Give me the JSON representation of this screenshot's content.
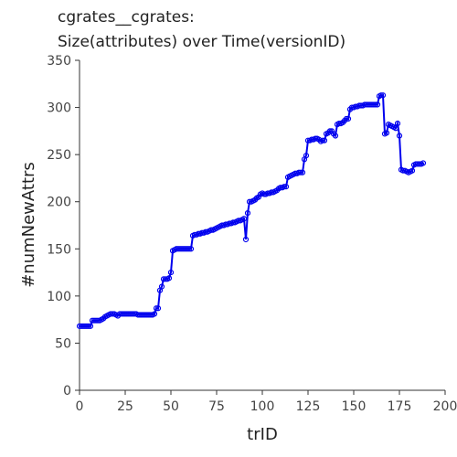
{
  "chart_data": {
    "type": "line",
    "title": "cgrates__cgrates:",
    "subtitle": "Size(attributes) over Time(versionID)",
    "xlabel": "trID",
    "ylabel": "#numNewAttrs",
    "xlim": [
      0,
      200
    ],
    "xticks": [
      0,
      25,
      50,
      75,
      100,
      125,
      150,
      175,
      200
    ],
    "ylim": [
      0,
      350
    ],
    "yticks": [
      0,
      50,
      100,
      150,
      200,
      250,
      300,
      350
    ],
    "grid": false,
    "series": [
      {
        "color": "#0000ee",
        "x": [
          0,
          1,
          2,
          3,
          4,
          5,
          6,
          7,
          8,
          9,
          10,
          11,
          12,
          13,
          14,
          15,
          16,
          17,
          18,
          19,
          20,
          21,
          22,
          23,
          24,
          25,
          26,
          27,
          28,
          29,
          30,
          31,
          32,
          33,
          34,
          35,
          36,
          37,
          38,
          39,
          40,
          41,
          42,
          43,
          44,
          45,
          46,
          47,
          48,
          49,
          50,
          51,
          52,
          53,
          54,
          55,
          56,
          57,
          58,
          59,
          60,
          61,
          62,
          63,
          64,
          65,
          66,
          67,
          68,
          69,
          70,
          71,
          72,
          73,
          74,
          75,
          76,
          77,
          78,
          79,
          80,
          81,
          82,
          83,
          84,
          85,
          86,
          87,
          88,
          89,
          90,
          91,
          92,
          93,
          94,
          95,
          96,
          97,
          98,
          99,
          100,
          101,
          102,
          103,
          104,
          105,
          106,
          107,
          108,
          109,
          110,
          111,
          112,
          113,
          114,
          115,
          116,
          117,
          118,
          119,
          120,
          121,
          122,
          123,
          124,
          125,
          126,
          127,
          128,
          129,
          130,
          131,
          132,
          133,
          134,
          135,
          136,
          137,
          138,
          139,
          140,
          141,
          142,
          143,
          144,
          145,
          146,
          147,
          148,
          149,
          150,
          151,
          152,
          153,
          154,
          155,
          156,
          157,
          158,
          159,
          160,
          161,
          162,
          163,
          164,
          165,
          166,
          167,
          168,
          169,
          170,
          171,
          172,
          173,
          174,
          175,
          176,
          177,
          178,
          179,
          180,
          181,
          182,
          183,
          184,
          185,
          186,
          187,
          188
        ],
        "values": [
          68,
          68,
          68,
          68,
          68,
          68,
          68,
          74,
          74,
          74,
          74,
          74,
          75,
          76,
          78,
          79,
          80,
          81,
          81,
          81,
          80,
          79,
          81,
          81,
          81,
          81,
          81,
          81,
          81,
          81,
          81,
          81,
          80,
          80,
          80,
          80,
          80,
          80,
          80,
          80,
          80,
          81,
          87,
          87,
          106,
          110,
          118,
          118,
          118,
          119,
          125,
          148,
          149,
          150,
          150,
          150,
          150,
          150,
          150,
          150,
          150,
          150,
          164,
          165,
          165,
          166,
          166,
          167,
          167,
          168,
          168,
          169,
          170,
          170,
          171,
          172,
          173,
          174,
          175,
          175,
          176,
          176,
          177,
          177,
          178,
          178,
          179,
          180,
          180,
          181,
          182,
          160,
          188,
          200,
          200,
          201,
          202,
          204,
          205,
          208,
          209,
          208,
          208,
          209,
          209,
          210,
          210,
          211,
          212,
          214,
          215,
          215,
          216,
          216,
          226,
          227,
          228,
          229,
          230,
          230,
          231,
          231,
          231,
          245,
          249,
          265,
          265,
          266,
          266,
          267,
          267,
          266,
          264,
          265,
          265,
          272,
          273,
          275,
          275,
          272,
          270,
          282,
          283,
          283,
          284,
          286,
          288,
          288,
          298,
          300,
          300,
          301,
          301,
          302,
          302,
          302,
          303,
          303,
          303,
          303,
          303,
          303,
          303,
          303,
          312,
          313,
          313,
          272,
          273,
          282,
          281,
          280,
          279,
          278,
          283,
          270,
          234,
          233,
          233,
          232,
          231,
          232,
          233,
          239,
          240,
          240,
          240,
          240,
          241
        ]
      }
    ]
  }
}
